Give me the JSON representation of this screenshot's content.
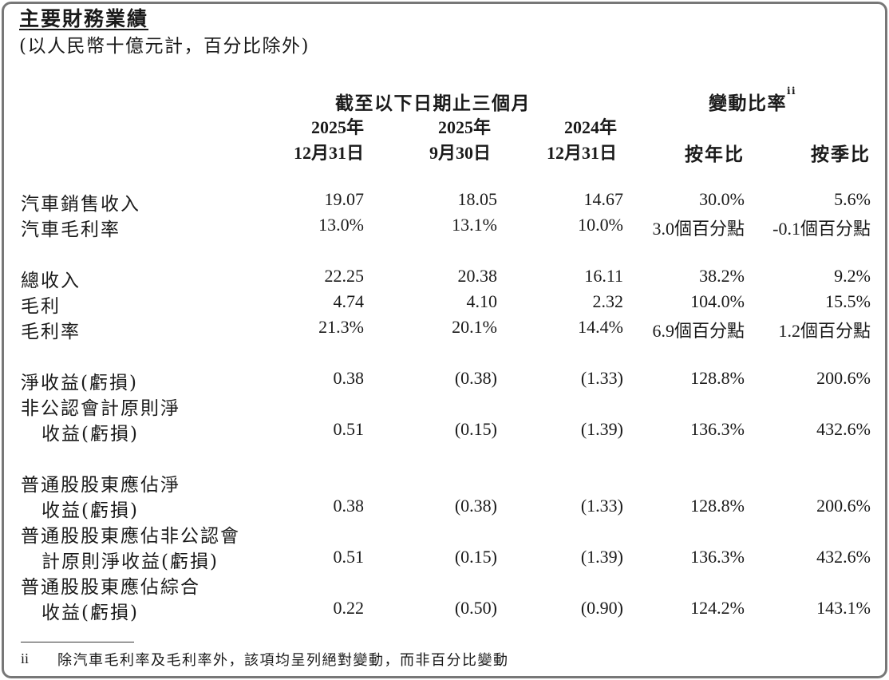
{
  "title": "主要財務業績",
  "subtitle": "(以人民幣十億元計，百分比除外)",
  "header": {
    "period_group": "截至以下日期止三個月",
    "change_group": "變動比率",
    "change_sup": "ii",
    "col1_year": "2025年",
    "col1_date": "12月31日",
    "col2_year": "2025年",
    "col2_date": "9月30日",
    "col3_year": "2024年",
    "col3_date": "12月31日",
    "yoy": "按年比",
    "qoq": "按季比"
  },
  "rows": [
    {
      "label": "汽車銷售收入",
      "c1": "19.07",
      "c2": "18.05",
      "c3": "14.67",
      "yoy": "30.0%",
      "qoq": "5.6%"
    },
    {
      "label": "汽車毛利率",
      "c1": "13.0%",
      "c2": "13.1%",
      "c3": "10.0%",
      "yoy": "3.0個百分點",
      "qoq": "-0.1個百分點"
    },
    {
      "label": "總收入",
      "c1": "22.25",
      "c2": "20.38",
      "c3": "16.11",
      "yoy": "38.2%",
      "qoq": "9.2%"
    },
    {
      "label": "毛利",
      "c1": "4.74",
      "c2": "4.10",
      "c3": "2.32",
      "yoy": "104.0%",
      "qoq": "15.5%"
    },
    {
      "label": "毛利率",
      "c1": "21.3%",
      "c2": "20.1%",
      "c3": "14.4%",
      "yoy": "6.9個百分點",
      "qoq": "1.2個百分點"
    },
    {
      "label": "淨收益(虧損)",
      "c1": "0.38",
      "c2": "(0.38)",
      "c3": "(1.33)",
      "yoy": "128.8%",
      "qoq": "200.6%"
    },
    {
      "label": "非公認會計原則淨",
      "label2": "收益(虧損)",
      "c1": "0.51",
      "c2": "(0.15)",
      "c3": "(1.39)",
      "yoy": "136.3%",
      "qoq": "432.6%"
    },
    {
      "label": "普通股股東應佔淨",
      "label2": "收益(虧損)",
      "c1": "0.38",
      "c2": "(0.38)",
      "c3": "(1.33)",
      "yoy": "128.8%",
      "qoq": "200.6%"
    },
    {
      "label": "普通股股東應佔非公認會",
      "label2": "計原則淨收益(虧損)",
      "c1": "0.51",
      "c2": "(0.15)",
      "c3": "(1.39)",
      "yoy": "136.3%",
      "qoq": "432.6%"
    },
    {
      "label": "普通股股東應佔綜合",
      "label2": "收益(虧損)",
      "c1": "0.22",
      "c2": "(0.50)",
      "c3": "(0.90)",
      "yoy": "124.2%",
      "qoq": "143.1%"
    }
  ],
  "footnote": {
    "mark": "ii",
    "text": "除汽車毛利率及毛利率外，該項均呈列絕對變動，而非百分比變動"
  }
}
